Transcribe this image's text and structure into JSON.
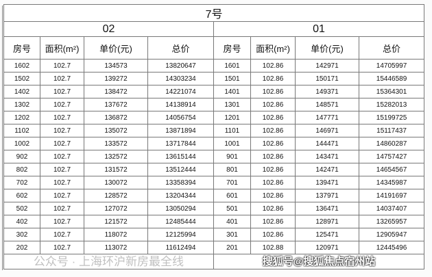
{
  "title": "7号",
  "sections": [
    "02",
    "01"
  ],
  "headers": [
    "房号",
    "面积(m²)",
    "单价(元)",
    "总价"
  ],
  "left_rows": [
    [
      "1602",
      "102.7",
      "134573",
      "13820647"
    ],
    [
      "1502",
      "102.7",
      "139272",
      "14303234"
    ],
    [
      "1402",
      "102.7",
      "138472",
      "14221074"
    ],
    [
      "1302",
      "102.7",
      "137672",
      "14138914"
    ],
    [
      "1202",
      "102.7",
      "136872",
      "14056754"
    ],
    [
      "1102",
      "102.7",
      "135072",
      "13871894"
    ],
    [
      "1002",
      "102.7",
      "133572",
      "13717844"
    ],
    [
      "902",
      "102.7",
      "132572",
      "13615144"
    ],
    [
      "802",
      "102.7",
      "131572",
      "13512444"
    ],
    [
      "702",
      "102.7",
      "130072",
      "13358394"
    ],
    [
      "602",
      "102.7",
      "128572",
      "13204344"
    ],
    [
      "502",
      "102.7",
      "127072",
      "13050294"
    ],
    [
      "402",
      "102.7",
      "121572",
      "12485444"
    ],
    [
      "302",
      "102.7",
      "118072",
      "12125994"
    ],
    [
      "202",
      "102.7",
      "113072",
      "11612494"
    ]
  ],
  "right_rows": [
    [
      "1601",
      "102.86",
      "142971",
      "14705997"
    ],
    [
      "1501",
      "102.86",
      "150171",
      "15446589"
    ],
    [
      "1401",
      "102.86",
      "149371",
      "15364301"
    ],
    [
      "1301",
      "102.86",
      "148571",
      "15282013"
    ],
    [
      "1201",
      "102.86",
      "147771",
      "15199725"
    ],
    [
      "1101",
      "102.86",
      "146971",
      "15117437"
    ],
    [
      "1001",
      "102.86",
      "144471",
      "14860287"
    ],
    [
      "901",
      "102.86",
      "143471",
      "14757427"
    ],
    [
      "801",
      "102.86",
      "142471",
      "14654567"
    ],
    [
      "701",
      "102.86",
      "139471",
      "14345987"
    ],
    [
      "601",
      "102.86",
      "137971",
      "14191697"
    ],
    [
      "501",
      "102.86",
      "136471",
      "14037407"
    ],
    [
      "401",
      "102.86",
      "128971",
      "13265957"
    ],
    [
      "301",
      "102.86",
      "125471",
      "12905947"
    ],
    [
      "201",
      "102.88",
      "120971",
      "12445496"
    ]
  ],
  "watermarks": [
    "公众号 · 上海环沪新房最全线",
    "搜狐号@搜狐焦点宿州站"
  ]
}
